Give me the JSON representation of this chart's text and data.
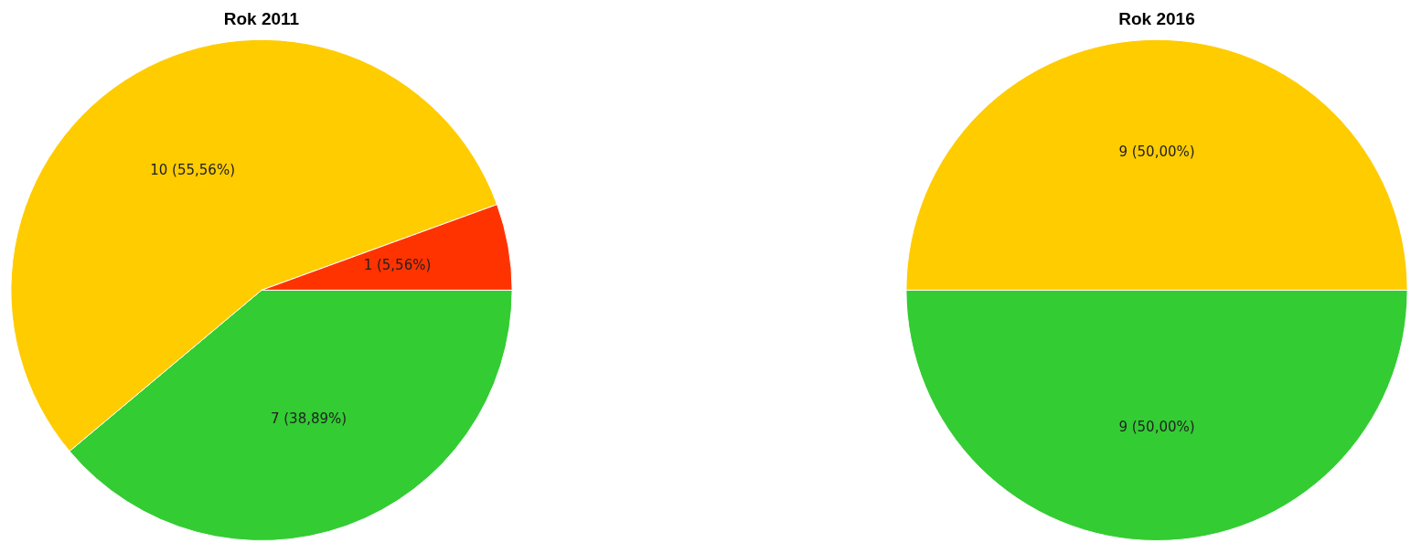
{
  "chart_data": [
    {
      "type": "pie",
      "title": "Rok 2011",
      "categories": [
        null,
        null,
        null
      ],
      "values": [
        7,
        10,
        1
      ],
      "colors": [
        "#33cc33",
        "#ffcc00",
        "#ff3300"
      ],
      "value_labels": [
        "7 (38,89%)",
        "10 (55,56%)",
        "1 (5,56%)"
      ]
    },
    {
      "type": "pie",
      "title": "Rok 2016",
      "categories": [
        null,
        null
      ],
      "values": [
        9,
        9
      ],
      "colors": [
        "#33cc33",
        "#ffcc00"
      ],
      "value_labels": [
        "9 (50,00%)",
        "9 (50,00%)"
      ]
    }
  ]
}
